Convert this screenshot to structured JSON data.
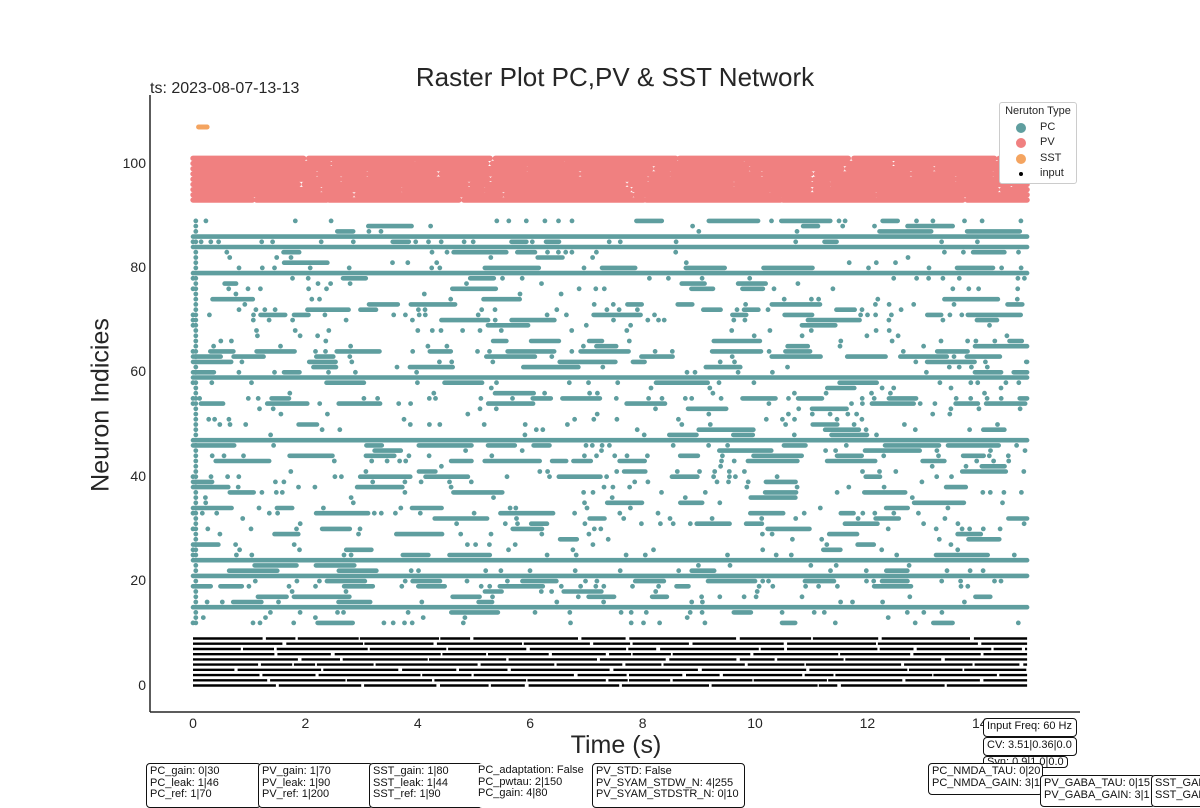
{
  "chart_data": {
    "type": "scatter",
    "title": "Raster Plot PC,PV & SST Network",
    "timestamp": "ts: 2023-08-07-13-13",
    "xlabel": "Time (s)",
    "ylabel": "Neuron Indicies",
    "xlim": [
      -0.75,
      15.25
    ],
    "ylim": [
      -5,
      113
    ],
    "x_ticks": [
      "0",
      "2",
      "4",
      "6",
      "8",
      "10",
      "12",
      "14"
    ],
    "x_tick_values": [
      0,
      2,
      4,
      6,
      8,
      10,
      12,
      14
    ],
    "y_ticks": [
      "0",
      "20",
      "40",
      "60",
      "80",
      "100"
    ],
    "y_tick_values": [
      0,
      20,
      40,
      60,
      80,
      100
    ],
    "grid": false,
    "legend": {
      "title": "Neruton Type",
      "placement": "top-right",
      "entries": [
        "PC",
        "PV",
        "SST",
        "input"
      ]
    },
    "series": [
      {
        "name": "PC",
        "color": "#5f9e9f",
        "neuron_range": [
          12,
          89
        ],
        "time_range": [
          0,
          15
        ]
      },
      {
        "name": "PV",
        "color": "#f08080",
        "neuron_range": [
          93,
          101
        ],
        "time_range": [
          0,
          15
        ]
      },
      {
        "name": "SST",
        "color": "#f4a460",
        "neurons": [
          107
        ],
        "time_range": [
          0.1,
          0.25
        ]
      },
      {
        "name": "input",
        "color": "#000000",
        "neuron_range": [
          0,
          9
        ],
        "time_range": [
          0,
          15
        ]
      }
    ],
    "pc_continuous_rows": [
      15,
      21,
      24,
      47,
      59,
      79,
      84,
      86
    ]
  },
  "param_boxes": [
    {
      "id": "pc",
      "lines": [
        "PC_gain: 0|30",
        "PC_leak: 1|46",
        "PC_ref: 1|70"
      ]
    },
    {
      "id": "pv",
      "lines": [
        "PV_gain: 1|70",
        "PV_leak: 1|90",
        "PV_ref: 1|200"
      ]
    },
    {
      "id": "sst",
      "lines": [
        "SST_gain: 1|80",
        "SST_leak: 1|44",
        "SST_ref: 1|90"
      ]
    },
    {
      "id": "adapt",
      "lines": [
        "PC_adaptation: False",
        "PC_pwtau: 2|150",
        "PC_gain: 4|80"
      ]
    },
    {
      "id": "pvstd",
      "lines": [
        "PV_STD: False",
        "PV_SYAM_STDW_N: 4|255",
        "PV_SYAM_STDSTR_N: 0|10"
      ]
    },
    {
      "id": "input",
      "lines": [
        "Input Freq: 60 Hz"
      ]
    },
    {
      "id": "cv",
      "lines": [
        "CV: 3.51|0.36|0.0"
      ]
    },
    {
      "id": "syn",
      "lines": [
        "Syn: 0.9|1.0|0.0"
      ]
    },
    {
      "id": "nmda",
      "lines": [
        "PC_NMDA_TAU: 0|20",
        "PC_NMDA_GAIN: 3|1"
      ]
    },
    {
      "id": "gaba",
      "lines": [
        "PV_GABA_TAU: 0|15",
        "PV_GABA_GAIN: 3|1"
      ]
    },
    {
      "id": "sstgaba",
      "lines": [
        "SST_GAB",
        "SST_GAB"
      ]
    }
  ]
}
